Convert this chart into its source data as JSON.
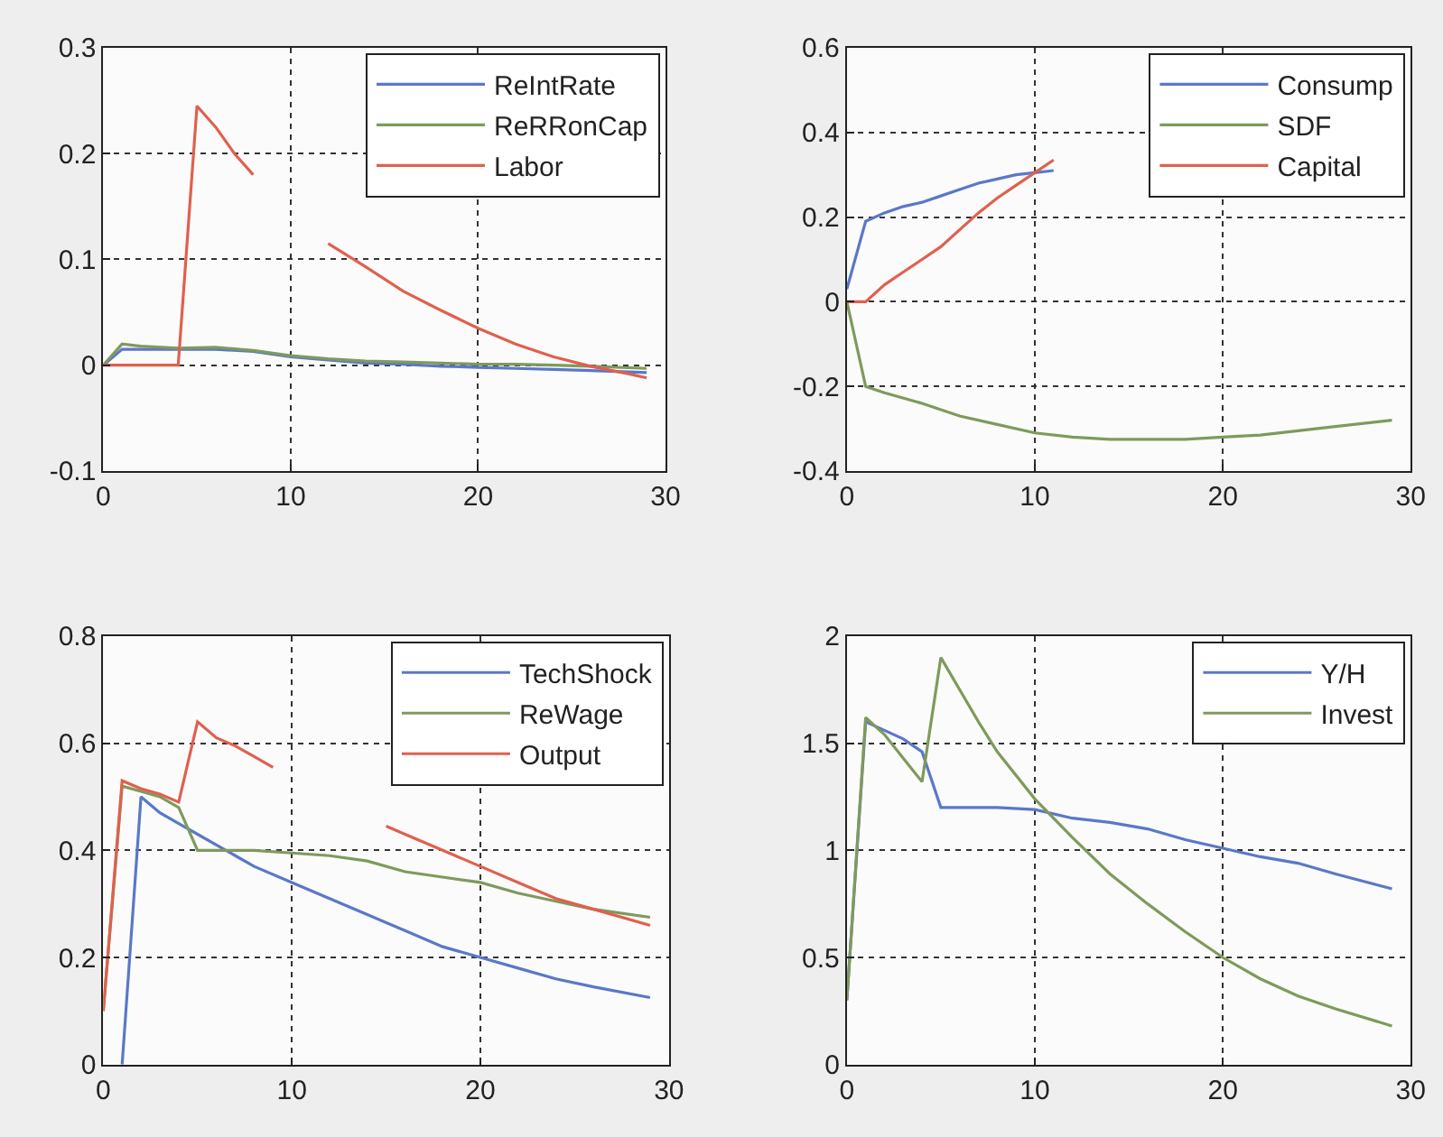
{
  "chart_data": [
    {
      "type": "line",
      "xlim": [
        0,
        30
      ],
      "xticks": [
        0,
        10,
        20,
        30
      ],
      "ylim": [
        -0.1,
        0.3
      ],
      "yticks": [
        -0.1,
        0,
        0.1,
        0.2,
        0.3
      ],
      "grid": true,
      "legend": "top right",
      "series": [
        {
          "name": "ReIntRate",
          "color": "#5a78c8",
          "x": [
            0,
            1,
            2,
            4,
            6,
            8,
            10,
            12,
            14,
            16,
            18,
            20,
            22,
            24,
            26,
            29
          ],
          "values": [
            0,
            0.015,
            0.015,
            0.015,
            0.015,
            0.013,
            0.008,
            0.005,
            0.002,
            0.001,
            -0.001,
            -0.002,
            -0.003,
            -0.004,
            -0.005,
            -0.007
          ]
        },
        {
          "name": "ReRRonCap",
          "color": "#7f9a5c",
          "x": [
            0,
            1,
            2,
            4,
            6,
            8,
            10,
            12,
            14,
            16,
            18,
            20,
            22,
            24,
            26,
            29
          ],
          "values": [
            0,
            0.02,
            0.018,
            0.016,
            0.017,
            0.014,
            0.009,
            0.006,
            0.004,
            0.003,
            0.002,
            0.001,
            0.001,
            0,
            -0.001,
            -0.003
          ]
        },
        {
          "name": "Labor",
          "color": "#e0604e",
          "x": [
            0,
            4,
            5,
            6,
            7,
            8,
            10,
            12,
            14,
            16,
            18,
            20,
            22,
            24,
            26,
            28,
            29
          ],
          "values": [
            0,
            0,
            0.245,
            0.225,
            0.2,
            0.18,
            null,
            0.115,
            0.093,
            0.07,
            0.052,
            0.035,
            0.02,
            0.008,
            -0.001,
            -0.008,
            -0.012
          ]
        }
      ]
    },
    {
      "type": "line",
      "xlim": [
        0,
        30
      ],
      "xticks": [
        0,
        10,
        20,
        30
      ],
      "ylim": [
        -0.4,
        0.6
      ],
      "yticks": [
        -0.4,
        -0.2,
        0,
        0.2,
        0.4,
        0.6
      ],
      "grid": true,
      "legend": "top right",
      "series": [
        {
          "name": "Consump",
          "color": "#5a78c8",
          "x": [
            0,
            1,
            2,
            3,
            4,
            5,
            6,
            7,
            8,
            9,
            10,
            11
          ],
          "values": [
            0.03,
            0.19,
            0.21,
            0.225,
            0.235,
            0.25,
            0.265,
            0.28,
            0.29,
            0.3,
            0.305,
            0.31
          ]
        },
        {
          "name": "SDF",
          "color": "#7f9a5c",
          "x": [
            0,
            1,
            2,
            4,
            6,
            8,
            10,
            12,
            14,
            16,
            18,
            20,
            22,
            24,
            26,
            29
          ],
          "values": [
            0,
            -0.2,
            -0.215,
            -0.24,
            -0.27,
            -0.29,
            -0.31,
            -0.32,
            -0.325,
            -0.325,
            -0.325,
            -0.32,
            -0.315,
            -0.305,
            -0.295,
            -0.28
          ]
        },
        {
          "name": "Capital",
          "color": "#e0604e",
          "x": [
            0,
            1,
            2,
            3,
            4,
            5,
            6,
            7,
            8,
            9,
            10,
            11
          ],
          "values": [
            0,
            0,
            0.04,
            0.07,
            0.1,
            0.13,
            0.17,
            0.21,
            0.245,
            0.275,
            0.305,
            0.335
          ]
        }
      ]
    },
    {
      "type": "line",
      "xlim": [
        0,
        30
      ],
      "xticks": [
        0,
        10,
        20,
        30
      ],
      "ylim": [
        0,
        0.8
      ],
      "yticks": [
        0,
        0.2,
        0.4,
        0.6,
        0.8
      ],
      "grid": true,
      "legend": "top right",
      "series": [
        {
          "name": "TechShock",
          "color": "#5a78c8",
          "x": [
            1,
            2,
            3,
            4,
            5,
            6,
            7,
            8,
            10,
            12,
            14,
            16,
            18,
            20,
            22,
            24,
            26,
            29
          ],
          "values": [
            0,
            0.5,
            0.47,
            0.45,
            0.43,
            0.41,
            0.39,
            0.37,
            0.34,
            0.31,
            0.28,
            0.25,
            0.22,
            0.2,
            0.18,
            0.16,
            0.145,
            0.125
          ]
        },
        {
          "name": "ReWage",
          "color": "#7f9a5c",
          "x": [
            0,
            1,
            2,
            3,
            4,
            5,
            6,
            8,
            10,
            12,
            14,
            16,
            18,
            20,
            22,
            24,
            26,
            29
          ],
          "values": [
            0.1,
            0.52,
            0.51,
            0.5,
            0.48,
            0.4,
            0.4,
            0.4,
            0.395,
            0.39,
            0.38,
            0.36,
            0.35,
            0.34,
            0.32,
            0.305,
            0.29,
            0.275
          ]
        },
        {
          "name": "Output",
          "color": "#e0604e",
          "x": [
            0,
            1,
            2,
            3,
            4,
            5,
            6,
            7,
            8,
            9,
            12,
            15,
            16,
            18,
            20,
            22,
            24,
            26,
            29
          ],
          "values": [
            0.1,
            0.53,
            0.515,
            0.505,
            0.49,
            0.64,
            0.61,
            0.595,
            0.575,
            0.555,
            null,
            0.445,
            0.43,
            0.4,
            0.37,
            0.34,
            0.31,
            0.29,
            0.26
          ]
        }
      ]
    },
    {
      "type": "line",
      "xlim": [
        0,
        30
      ],
      "xticks": [
        0,
        10,
        20,
        30
      ],
      "ylim": [
        0,
        2
      ],
      "yticks": [
        0,
        0.5,
        1,
        1.5,
        2
      ],
      "grid": true,
      "legend": "top right",
      "series": [
        {
          "name": "Y/H",
          "color": "#5a78c8",
          "x": [
            0,
            1,
            2,
            3,
            4,
            5,
            6,
            8,
            10,
            12,
            14,
            16,
            18,
            20,
            22,
            24,
            26,
            29
          ],
          "values": [
            0.3,
            1.6,
            1.56,
            1.52,
            1.46,
            1.2,
            1.2,
            1.2,
            1.19,
            1.15,
            1.13,
            1.1,
            1.05,
            1.01,
            0.97,
            0.94,
            0.89,
            0.82
          ]
        },
        {
          "name": "Invest",
          "color": "#7f9a5c",
          "x": [
            0,
            1,
            2,
            3,
            4,
            5,
            6,
            7,
            8,
            10,
            12,
            14,
            16,
            18,
            20,
            22,
            24,
            26,
            29
          ],
          "values": [
            0.3,
            1.62,
            1.54,
            1.43,
            1.32,
            1.9,
            1.75,
            1.6,
            1.46,
            1.24,
            1.06,
            0.89,
            0.75,
            0.62,
            0.5,
            0.4,
            0.32,
            0.26,
            0.18
          ]
        }
      ]
    }
  ]
}
